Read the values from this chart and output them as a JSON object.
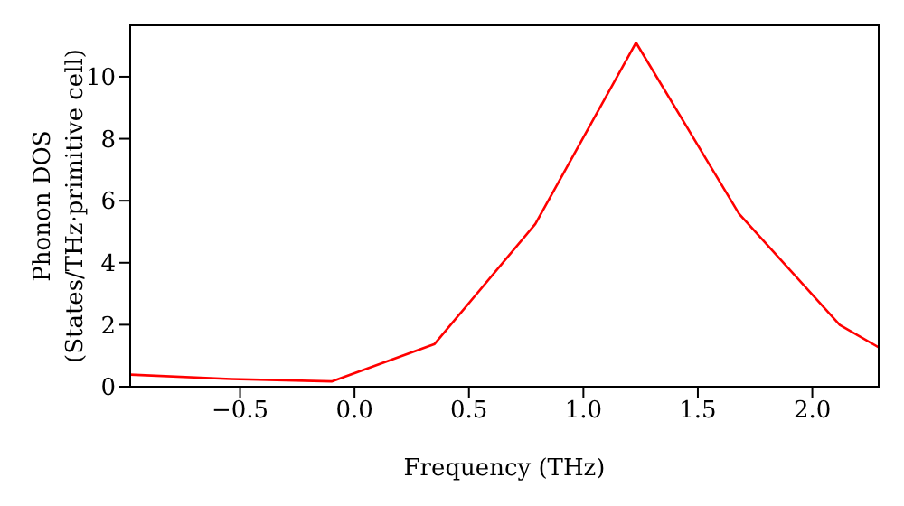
{
  "chart_data": {
    "type": "line",
    "xlabel": "Frequency (THz)",
    "ylabel": "Phonon DOS\n(States/THz·primitive cell)",
    "x": [
      -0.98,
      -0.54,
      -0.1,
      0.35,
      0.79,
      1.23,
      1.68,
      2.12,
      2.29
    ],
    "series": [
      {
        "color": "#ff0000",
        "values": [
          0.39,
          0.25,
          0.17,
          1.38,
          5.25,
          11.1,
          5.58,
          1.99,
          1.27
        ]
      }
    ],
    "xlim": [
      -0.98,
      2.29
    ],
    "ylim": [
      0,
      11.66
    ],
    "xticks": [
      {
        "value": -0.5,
        "label": "−0.5"
      },
      {
        "value": 0,
        "label": "0.0"
      },
      {
        "value": 0.5,
        "label": "0.5"
      },
      {
        "value": 1,
        "label": "1.0"
      },
      {
        "value": 1.5,
        "label": "1.5"
      },
      {
        "value": 2,
        "label": "2.0"
      }
    ],
    "yticks": [
      0,
      2,
      4,
      6,
      8,
      10
    ],
    "grid": false,
    "legend": false,
    "marker": "none",
    "line_style": "solid"
  }
}
